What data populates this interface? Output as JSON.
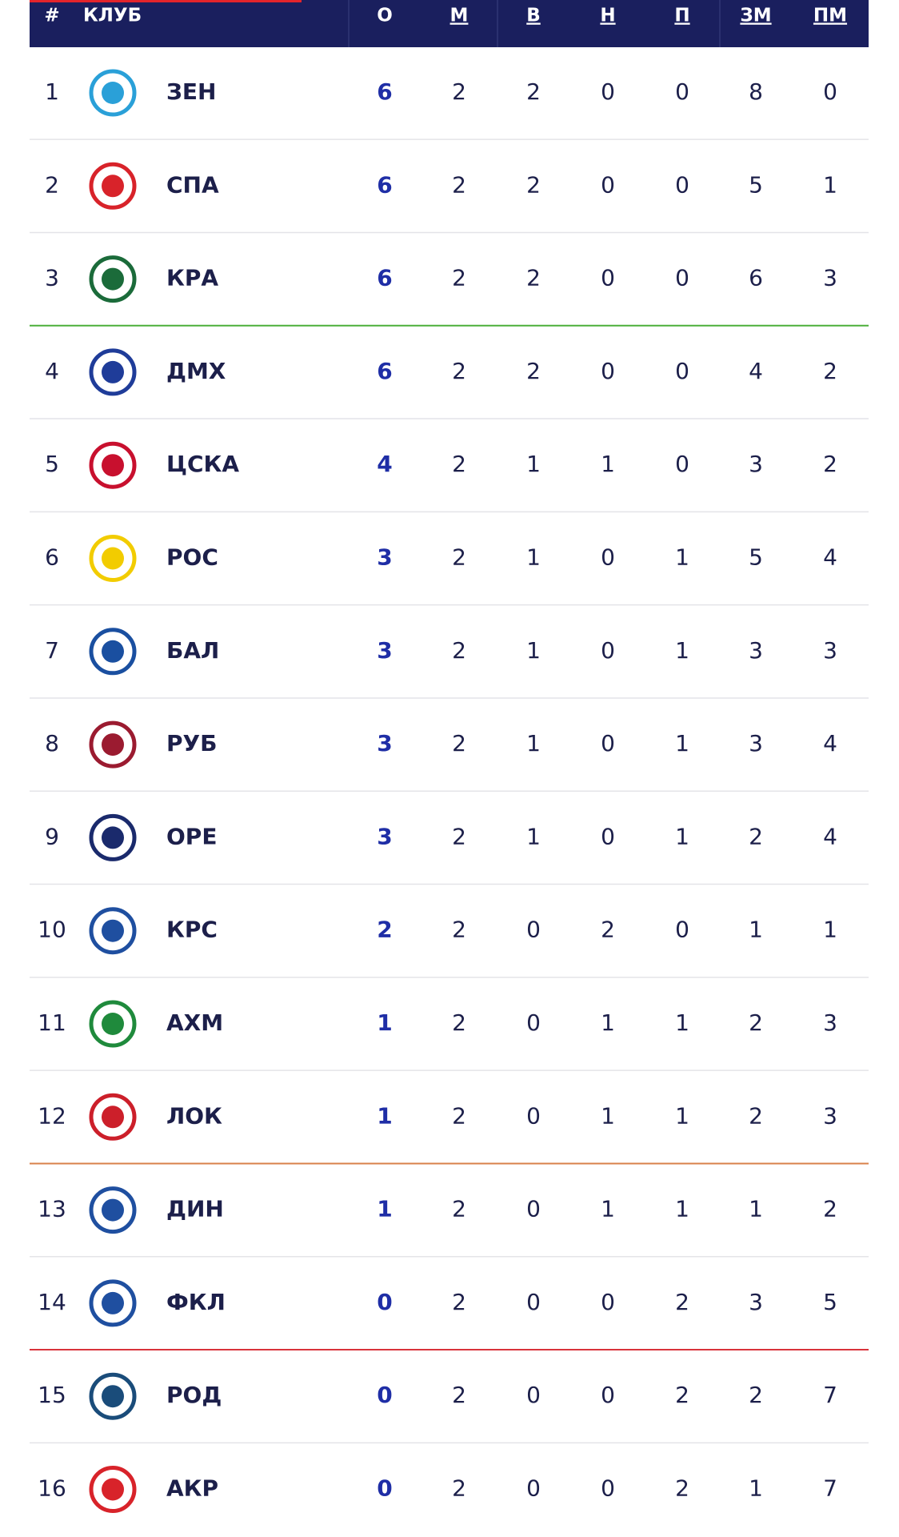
{
  "table": {
    "header": [
      "#",
      "КЛУБ",
      "О",
      "М",
      "В",
      "Н",
      "П",
      "ЗМ",
      "ПМ"
    ],
    "rows": [
      [
        1,
        "ЗЕН",
        6,
        2,
        2,
        0,
        0,
        8,
        0
      ],
      [
        2,
        "СПА",
        6,
        2,
        2,
        0,
        0,
        5,
        1
      ],
      [
        3,
        "КРА",
        6,
        2,
        2,
        0,
        0,
        6,
        3
      ],
      [
        4,
        "ДМХ",
        6,
        2,
        2,
        0,
        0,
        4,
        2
      ],
      [
        5,
        "ЦСКА",
        4,
        2,
        1,
        1,
        0,
        3,
        2
      ],
      [
        6,
        "РОС",
        3,
        2,
        1,
        0,
        1,
        5,
        4
      ],
      [
        7,
        "БАЛ",
        3,
        2,
        1,
        0,
        1,
        3,
        3
      ],
      [
        8,
        "РУБ",
        3,
        2,
        1,
        0,
        1,
        3,
        4
      ],
      [
        9,
        "ОРЕ",
        3,
        2,
        1,
        0,
        1,
        2,
        4
      ],
      [
        10,
        "КРС",
        2,
        2,
        0,
        2,
        0,
        1,
        1
      ],
      [
        11,
        "АХМ",
        1,
        2,
        0,
        1,
        1,
        2,
        3
      ],
      [
        12,
        "ЛОК",
        1,
        2,
        0,
        1,
        1,
        2,
        3
      ],
      [
        13,
        "ДИН",
        1,
        2,
        0,
        1,
        1,
        1,
        2
      ],
      [
        14,
        "ФКЛ",
        0,
        2,
        0,
        0,
        2,
        3,
        5
      ],
      [
        15,
        "РОД",
        0,
        2,
        0,
        0,
        2,
        2,
        7
      ],
      [
        16,
        "АКР",
        0,
        2,
        0,
        0,
        2,
        1,
        7
      ]
    ]
  }
}
